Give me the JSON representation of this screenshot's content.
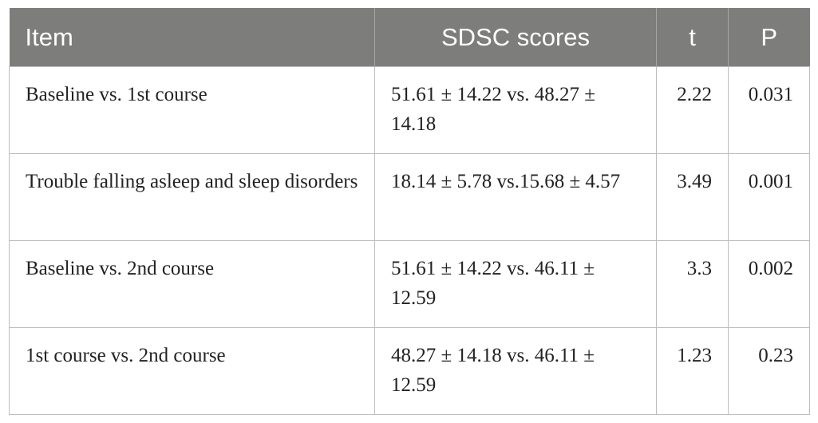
{
  "table": {
    "headers": {
      "item": "Item",
      "scores": "SDSC scores",
      "t": "t",
      "p": "P"
    },
    "rows": [
      {
        "item": "Baseline vs. 1st course",
        "scores": "51.61 ± 14.22 vs. 48.27 ± 14.18",
        "t": "2.22",
        "p": "0.031"
      },
      {
        "item": "Trouble falling asleep and sleep disorders",
        "scores": "18.14 ± 5.78 vs.15.68 ± 4.57",
        "t": "3.49",
        "p": "0.001"
      },
      {
        "item": "Baseline vs. 2nd course",
        "scores": "51.61 ± 14.22 vs. 46.11 ± 12.59",
        "t": "3.3",
        "p": "0.002"
      },
      {
        "item": "1st course vs. 2nd course",
        "scores": "48.27 ± 14.18 vs. 46.11 ± 12.59",
        "t": "1.23",
        "p": "0.23"
      }
    ]
  }
}
